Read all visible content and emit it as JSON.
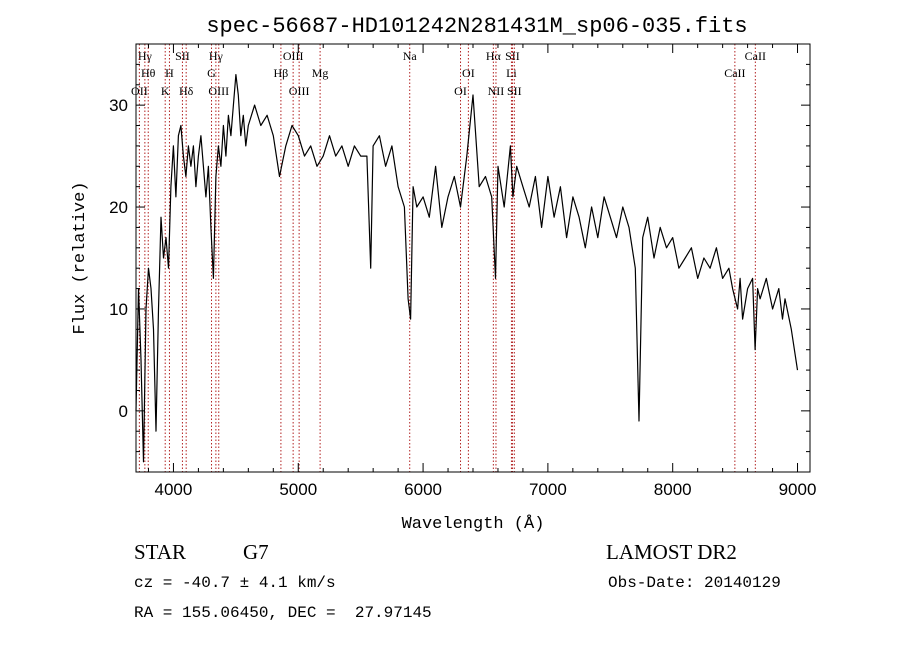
{
  "chart_data": {
    "type": "line",
    "title": "spec-56687-HD101242N281431M_sp06-035.fits",
    "xlabel": "Wavelength (Å)",
    "ylabel": "Flux (relative)",
    "xlim": [
      3700,
      9100
    ],
    "ylim": [
      -6,
      36
    ],
    "xticks": [
      4000,
      5000,
      6000,
      7000,
      8000,
      9000
    ],
    "yticks": [
      0,
      10,
      20,
      30
    ],
    "grid": false,
    "line_color": "#000000",
    "marker_color": "#b22222",
    "series": [
      {
        "x": [
          3700,
          3720,
          3740,
          3760,
          3780,
          3800,
          3820,
          3840,
          3860,
          3880,
          3900,
          3920,
          3940,
          3960,
          3980,
          4000,
          4020,
          4040,
          4060,
          4080,
          4100,
          4120,
          4140,
          4160,
          4180,
          4200,
          4220,
          4240,
          4260,
          4280,
          4300,
          4320,
          4340,
          4360,
          4380,
          4400,
          4420,
          4440,
          4460,
          4480,
          4500,
          4520,
          4540,
          4560,
          4580,
          4600,
          4650,
          4700,
          4750,
          4800,
          4850,
          4900,
          4950,
          5000,
          5050,
          5100,
          5150,
          5200,
          5250,
          5300,
          5350,
          5400,
          5450,
          5500,
          5550,
          5580,
          5600,
          5650,
          5700,
          5750,
          5800,
          5850,
          5880,
          5900,
          5920,
          5950,
          6000,
          6050,
          6100,
          6150,
          6200,
          6250,
          6300,
          6350,
          6400,
          6450,
          6500,
          6550,
          6580,
          6600,
          6650,
          6700,
          6720,
          6750,
          6800,
          6850,
          6900,
          6950,
          7000,
          7050,
          7100,
          7150,
          7200,
          7250,
          7300,
          7350,
          7400,
          7450,
          7500,
          7550,
          7600,
          7650,
          7700,
          7730,
          7760,
          7800,
          7850,
          7900,
          7950,
          8000,
          8050,
          8100,
          8150,
          8200,
          8250,
          8300,
          8350,
          8400,
          8450,
          8480,
          8500,
          8520,
          8540,
          8560,
          8600,
          8640,
          8660,
          8680,
          8700,
          8750,
          8800,
          8850,
          8880,
          8900,
          8950,
          9000
        ],
        "y": [
          0,
          12,
          5,
          -5,
          10,
          14,
          12,
          8,
          -2,
          10,
          19,
          15,
          17,
          14,
          22,
          26,
          21,
          27,
          28,
          25,
          23,
          26,
          24,
          26,
          22,
          25,
          27,
          24,
          21,
          24,
          18,
          13,
          23,
          26,
          24,
          28,
          25,
          29,
          27,
          30,
          33,
          31,
          27,
          29,
          26,
          28,
          30,
          28,
          29,
          27,
          23,
          26,
          28,
          27,
          25,
          26,
          24,
          25,
          27,
          25,
          26,
          24,
          26,
          25,
          25,
          14,
          26,
          27,
          24,
          26,
          22,
          20,
          11,
          9,
          22,
          20,
          21,
          19,
          24,
          18,
          21,
          23,
          20,
          25,
          31,
          22,
          23,
          21,
          13,
          24,
          20,
          26,
          21,
          24,
          22,
          20,
          23,
          18,
          23,
          19,
          22,
          17,
          21,
          19,
          16,
          20,
          17,
          21,
          19,
          17,
          20,
          18,
          14,
          -1,
          17,
          19,
          15,
          18,
          16,
          17,
          14,
          15,
          16,
          13,
          15,
          14,
          16,
          13,
          14,
          12,
          11,
          10,
          13,
          9,
          12,
          13,
          6,
          12,
          11,
          13,
          10,
          12,
          9,
          11,
          8,
          4
        ]
      }
    ],
    "line_markers": [
      {
        "label": "Hγ",
        "x": 3771,
        "row": 0
      },
      {
        "label": "Hθ",
        "x": 3798,
        "row": 1
      },
      {
        "label": "OII",
        "x": 3727,
        "row": 2
      },
      {
        "label": "SII",
        "x": 4072,
        "row": 0
      },
      {
        "label": "H",
        "x": 3968,
        "row": 1
      },
      {
        "label": "K",
        "x": 3934,
        "row": 2
      },
      {
        "label": "Hδ",
        "x": 4102,
        "row": 2
      },
      {
        "label": "Hγ",
        "x": 4340,
        "row": 0
      },
      {
        "label": "G",
        "x": 4305,
        "row": 1
      },
      {
        "label": "OIII",
        "x": 4363,
        "row": 2
      },
      {
        "label": "OIII",
        "x": 4959,
        "row": 0
      },
      {
        "label": "Hβ",
        "x": 4861,
        "row": 1
      },
      {
        "label": "Mg",
        "x": 5175,
        "row": 1
      },
      {
        "label": "OIII",
        "x": 5007,
        "row": 2
      },
      {
        "label": "Na",
        "x": 5893,
        "row": 0
      },
      {
        "label": "OI",
        "x": 6363,
        "row": 1
      },
      {
        "label": "OI",
        "x": 6300,
        "row": 2
      },
      {
        "label": "Hα",
        "x": 6563,
        "row": 0
      },
      {
        "label": "SII",
        "x": 6716,
        "row": 0
      },
      {
        "label": "Li",
        "x": 6708,
        "row": 1
      },
      {
        "label": "NII",
        "x": 6584,
        "row": 2
      },
      {
        "label": "SII",
        "x": 6731,
        "row": 2
      },
      {
        "label": "CaII",
        "x": 8662,
        "row": 0
      },
      {
        "label": "CaII",
        "x": 8498,
        "row": 1
      }
    ]
  },
  "info": {
    "object_class": "STAR",
    "subclass": "G7",
    "survey": "LAMOST DR2",
    "redshift": "cz = -40.7 ± 4.1 km/s",
    "obs_date": "Obs-Date: 20140129",
    "coords": "RA = 155.06450, DEC =  27.97145"
  }
}
